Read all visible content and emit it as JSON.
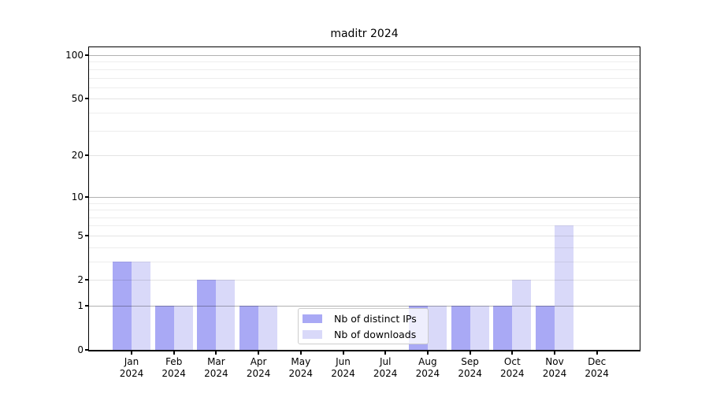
{
  "chart_data": {
    "type": "bar",
    "title": "maditr 2024",
    "categories": [
      "Jan",
      "Feb",
      "Mar",
      "Apr",
      "May",
      "Jun",
      "Jul",
      "Aug",
      "Sep",
      "Oct",
      "Nov",
      "Dec"
    ],
    "year_label": "2024",
    "series": [
      {
        "name": "Nb of distinct IPs",
        "color": "#a9a9f5",
        "values": [
          3,
          1,
          2,
          1,
          0,
          0,
          0,
          1,
          1,
          1,
          1,
          0
        ]
      },
      {
        "name": "Nb of downloads",
        "color": "#d9d9f9",
        "values": [
          3,
          1,
          2,
          1,
          0,
          0,
          0,
          1,
          1,
          2,
          6,
          0
        ]
      }
    ],
    "y_ticks": [
      0,
      1,
      2,
      5,
      10,
      20,
      50,
      100
    ],
    "y_scale": "log10(1+x)",
    "ylim": [
      0,
      113
    ],
    "grid": {
      "major": [
        1,
        10,
        100
      ],
      "sub": [
        2,
        5,
        20,
        50
      ],
      "minor": [
        3,
        4,
        6,
        7,
        8,
        9,
        30,
        40,
        60,
        70,
        80,
        90
      ]
    },
    "legend_position": "lower-center",
    "grid_orientation": "horizontal"
  }
}
